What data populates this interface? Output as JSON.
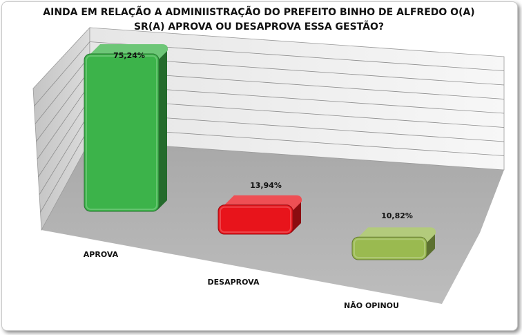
{
  "title_lines": [
    "AINDA EM RELAÇÃO A ADMINIISTRAÇÃO DO PREFEITO BINHO DE ALFREDO O(A)",
    "SR(A) APROVA OU DESAPROVA  ESSA GESTÃO?"
  ],
  "chart_data": {
    "type": "bar",
    "title": "AINDA EM RELAÇÃO A ADMINIISTRAÇÃO DO PREFEITO BINHO DE ALFREDO O(A) SR(A) APROVA OU DESAPROVA  ESSA GESTÃO?",
    "categories": [
      "APROVA",
      "DESAPROVA",
      "NÃO OPINOU"
    ],
    "values": [
      75.24,
      13.94,
      10.82
    ],
    "data_labels": [
      "75,24%",
      "13,94%",
      "10,82%"
    ],
    "colors": [
      "#3cb34a",
      "#e8141b",
      "#9aba50"
    ],
    "ylim": [
      0,
      80
    ],
    "grid": true,
    "legend": "none",
    "style": "3d"
  }
}
